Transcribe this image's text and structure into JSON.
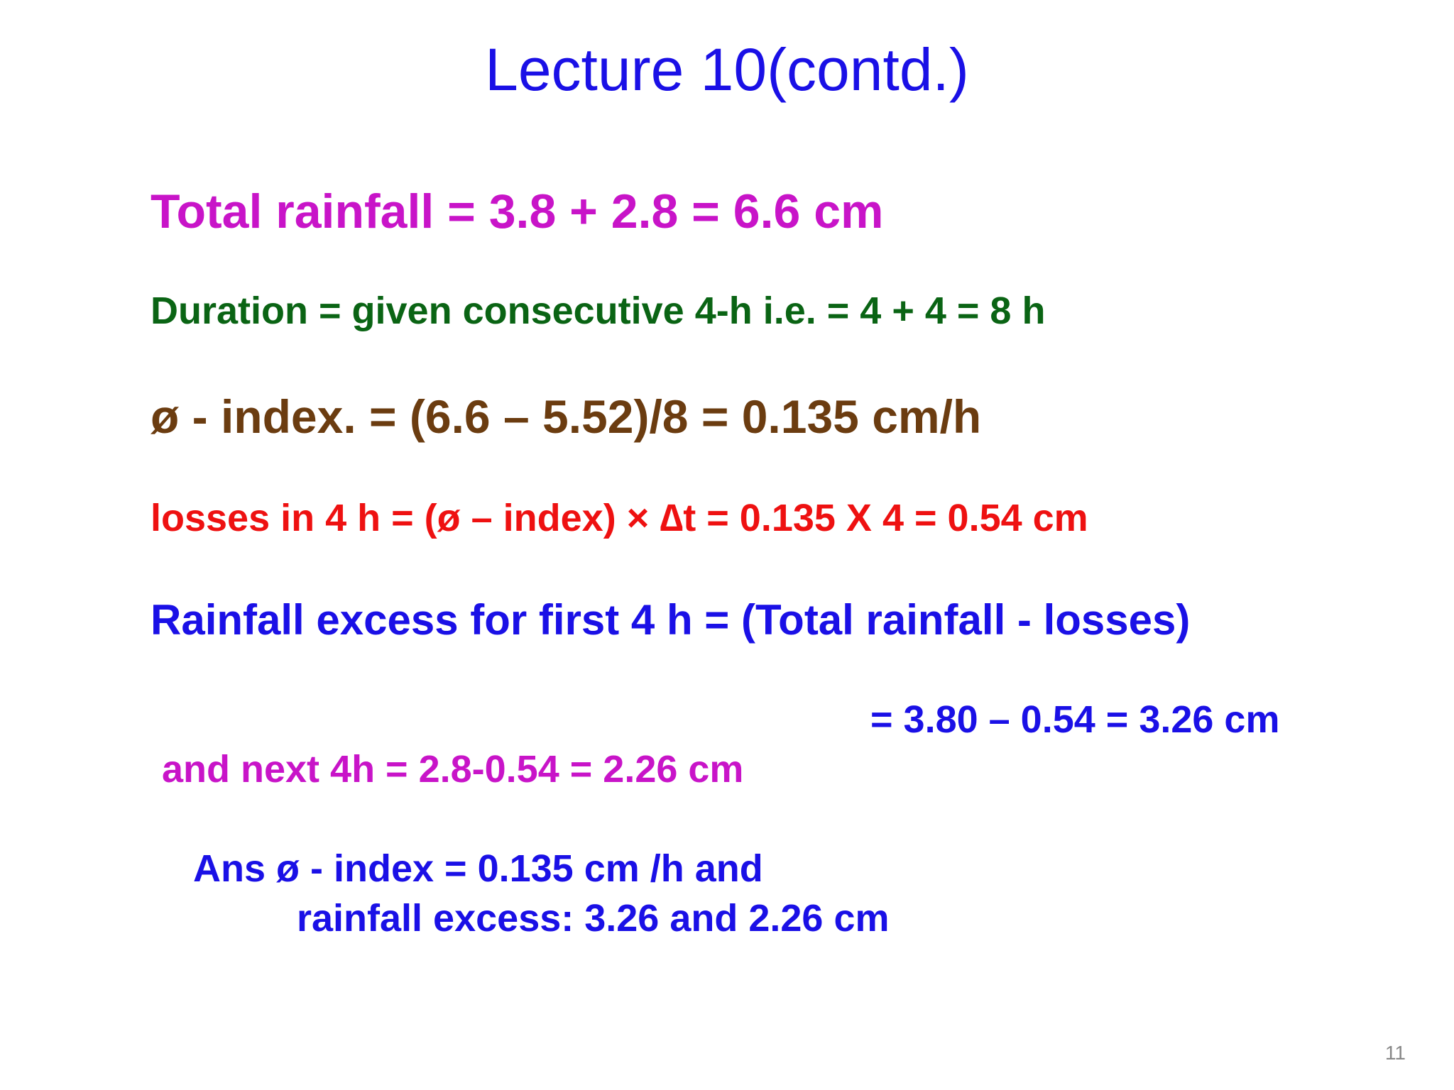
{
  "slide": {
    "title": "Lecture 10(contd.)",
    "lines": [
      "Total rainfall = 3.8 + 2.8 = 6.6 cm",
      "Duration = given consecutive 4-h  i.e. =   4 + 4 = 8 h",
      "ø - index. = (6.6 – 5.52)/8 = 0.135 cm/h",
      "losses in 4 h =  (ø – index) × ∆t = 0.135 X 4 = 0.54 cm",
      "Rainfall excess for first 4 h = (Total rainfall - losses)",
      "= 3.80 – 0.54 = 3.26 cm",
      "and next 4h = 2.8-0.54 = 2.26 cm",
      "Ans    ø - index  = 0.135 cm /h and",
      "rainfall excess: 3.26 and 2.26 cm"
    ],
    "page_number": "11"
  },
  "colors": {
    "title": "#1a10e6",
    "magenta": "#c814c8",
    "green": "#0a6414",
    "brown": "#6b3c10",
    "red": "#ee1111",
    "blue": "#1a10e6",
    "page_number": "#888888"
  }
}
